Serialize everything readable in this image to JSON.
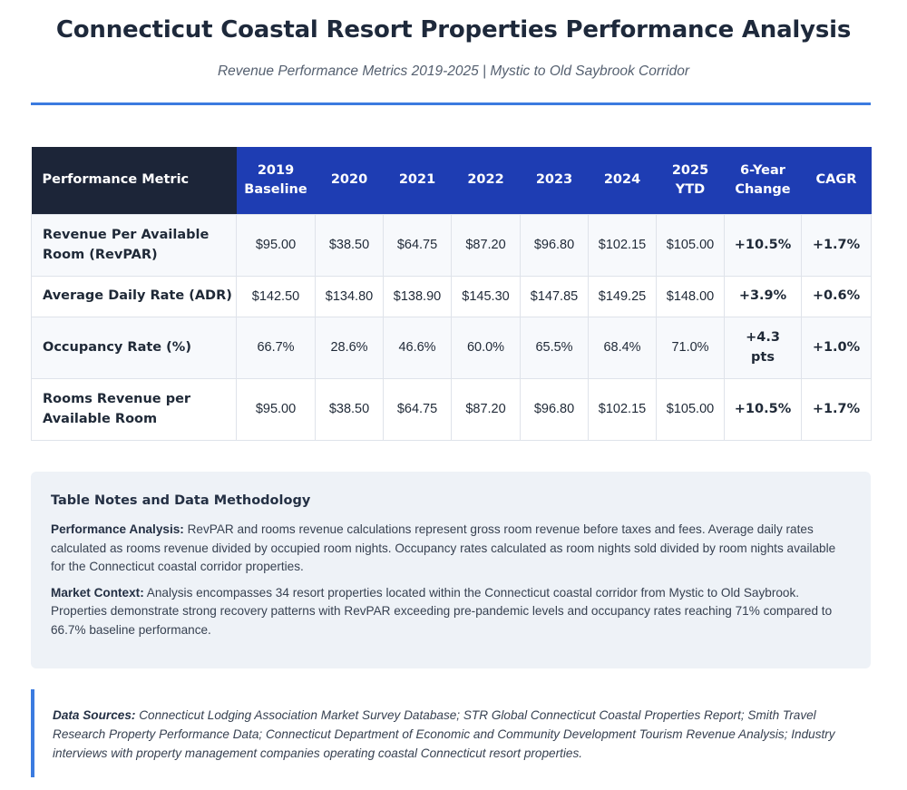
{
  "header": {
    "title": "Connecticut Coastal Resort Properties Performance Analysis",
    "subtitle": "Revenue Performance Metrics 2019-2025 | Mystic to Old Saybrook Corridor"
  },
  "table": {
    "columns": [
      [
        "Performance Metric"
      ],
      [
        "2019",
        "Baseline"
      ],
      [
        "2020"
      ],
      [
        "2021"
      ],
      [
        "2022"
      ],
      [
        "2023"
      ],
      [
        "2024"
      ],
      [
        "2025",
        "YTD"
      ],
      [
        "6-Year",
        "Change"
      ],
      [
        "CAGR"
      ]
    ],
    "rows": [
      {
        "metric": [
          "Revenue Per Available",
          "Room (RevPAR)"
        ],
        "values": [
          "$95.00",
          "$38.50",
          "$64.75",
          "$87.20",
          "$96.80",
          "$102.15",
          "$105.00"
        ],
        "change": [
          "+10.5%"
        ],
        "cagr": "+1.7%"
      },
      {
        "metric": [
          "Average Daily Rate (ADR)"
        ],
        "values": [
          "$142.50",
          "$134.80",
          "$138.90",
          "$145.30",
          "$147.85",
          "$149.25",
          "$148.00"
        ],
        "change": [
          "+3.9%"
        ],
        "cagr": "+0.6%"
      },
      {
        "metric": [
          "Occupancy Rate (%)"
        ],
        "values": [
          "66.7%",
          "28.6%",
          "46.6%",
          "60.0%",
          "65.5%",
          "68.4%",
          "71.0%"
        ],
        "change": [
          "+4.3",
          "pts"
        ],
        "cagr": "+1.0%"
      },
      {
        "metric": [
          "Rooms Revenue per",
          "Available Room"
        ],
        "values": [
          "$95.00",
          "$38.50",
          "$64.75",
          "$87.20",
          "$96.80",
          "$102.15",
          "$105.00"
        ],
        "change": [
          "+10.5%"
        ],
        "cagr": "+1.7%"
      }
    ]
  },
  "notes": {
    "heading": "Table Notes and Data Methodology",
    "performance_label": "Performance Analysis:",
    "performance_text": " RevPAR and rooms revenue calculations represent gross room revenue before taxes and fees. Average daily rates calculated as rooms revenue divided by occupied room nights. Occupancy rates calculated as room nights sold divided by room nights available for the Connecticut coastal corridor properties.",
    "market_label": "Market Context:",
    "market_text": " Analysis encompasses 34 resort properties located within the Connecticut coastal corridor from Mystic to Old Saybrook. Properties demonstrate strong recovery patterns with RevPAR exceeding pre-pandemic levels and occupancy rates reaching 71% compared to 66.7% baseline performance."
  },
  "sources": {
    "label": "Data Sources:",
    "text": " Connecticut Lodging Association Market Survey Database; STR Global Connecticut Coastal Properties Report; Smith Travel Research Property Performance Data; Connecticut Department of Economic and Community Development Tourism Revenue Analysis; Industry interviews with property management companies operating coastal Connecticut resort properties."
  },
  "colors": {
    "header_blue": "#1e3db3",
    "header_dark": "#1c2538",
    "accent_rule": "#3b7be0",
    "notes_bg": "#eef2f7"
  }
}
